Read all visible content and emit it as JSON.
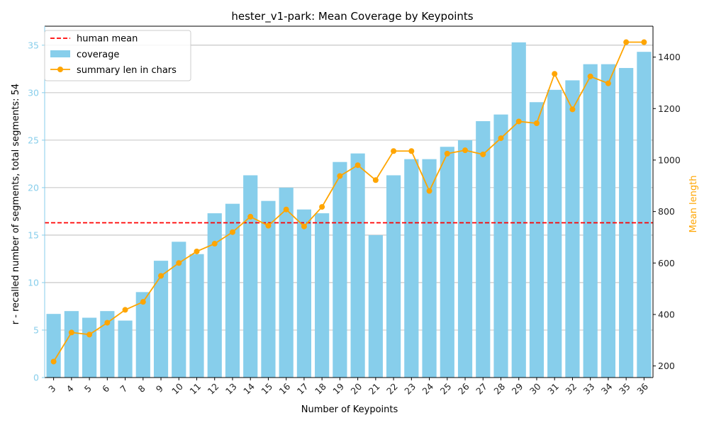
{
  "chart_data": {
    "type": "bar",
    "title": "hester_v1-park: Mean Coverage by Keypoints",
    "xlabel": "Number of Keypoints",
    "ylabel": "r - recalled number of segments, total segments: 54",
    "y2label": "Mean length",
    "categories": [
      "3",
      "4",
      "5",
      "6",
      "7",
      "8",
      "9",
      "10",
      "11",
      "12",
      "13",
      "14",
      "15",
      "16",
      "17",
      "18",
      "19",
      "20",
      "21",
      "22",
      "23",
      "24",
      "25",
      "26",
      "27",
      "28",
      "29",
      "30",
      "31",
      "32",
      "33",
      "34",
      "35",
      "36"
    ],
    "ylim": [
      0,
      37
    ],
    "y2lim": [
      155,
      1520
    ],
    "yticks": [
      0,
      5,
      10,
      15,
      20,
      25,
      30,
      35
    ],
    "y2ticks": [
      200,
      400,
      600,
      800,
      1000,
      1200,
      1400
    ],
    "grid": "horizontal (left axis)",
    "legend_position": "top-left",
    "human_mean": 16.3,
    "series": [
      {
        "name": "coverage",
        "kind": "bar",
        "axis": "left",
        "color": "#87CEEB",
        "values": [
          6.7,
          7.0,
          6.3,
          7.0,
          6.0,
          9.0,
          12.3,
          14.3,
          13.0,
          17.3,
          18.3,
          21.3,
          18.6,
          20.0,
          17.7,
          17.3,
          22.7,
          23.6,
          15.0,
          21.3,
          23.0,
          23.0,
          24.3,
          25.0,
          27.0,
          27.7,
          35.3,
          29.0,
          30.3,
          31.3,
          33.0,
          33.0,
          32.6,
          34.3
        ]
      },
      {
        "name": "summary len in chars",
        "kind": "line",
        "axis": "right",
        "color": "#FFA500",
        "values": [
          217,
          330,
          322,
          368,
          418,
          449,
          550,
          600,
          645,
          675,
          720,
          780,
          745,
          808,
          742,
          818,
          938,
          980,
          922,
          1035,
          1035,
          880,
          1025,
          1038,
          1022,
          1085,
          1150,
          1143,
          1335,
          1197,
          1325,
          1298,
          1458,
          1458
        ]
      }
    ],
    "reference_lines": [
      {
        "name": "human mean",
        "value": 16.3,
        "axis": "left",
        "color": "#FF0000",
        "style": "dashed"
      }
    ],
    "colors": {
      "left_axis": "#87CEEB",
      "right_axis": "#FFA500",
      "grid": "#b0b0b0"
    }
  }
}
